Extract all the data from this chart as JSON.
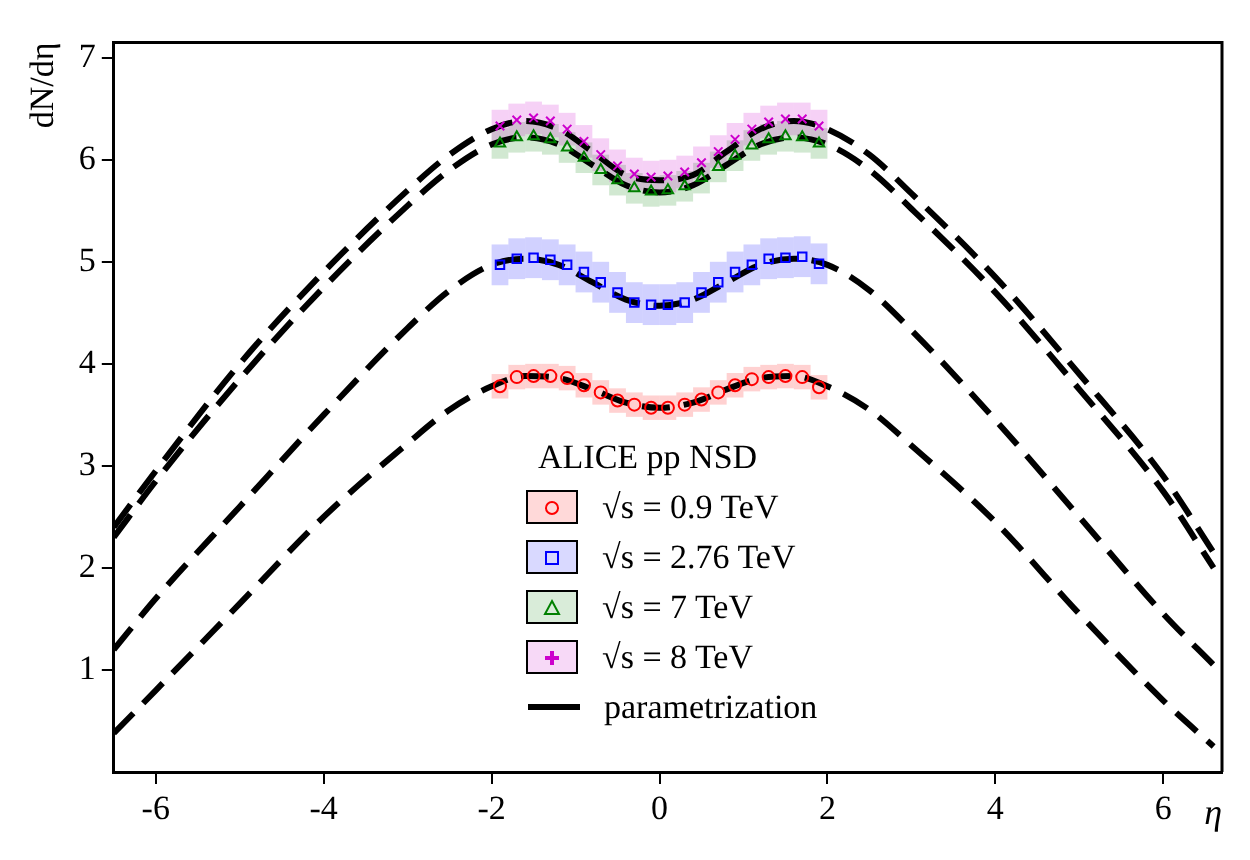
{
  "chart_data": {
    "type": "scatter",
    "ylabel": "dN/dη",
    "xlabel": "η",
    "legend_title": "ALICE pp NSD",
    "legend": "bottom",
    "grid": false,
    "xlim": [
      -6.5,
      6.7
    ],
    "xticks": [
      -6,
      -4,
      -2,
      0,
      2,
      4,
      6
    ],
    "ylim": [
      0,
      7.15
    ],
    "yticks": [
      1,
      2,
      3,
      4,
      5,
      6,
      7
    ],
    "x": [
      -1.9,
      -1.7,
      -1.5,
      -1.3,
      -1.1,
      -0.9,
      -0.7,
      -0.5,
      -0.3,
      -0.1,
      0.1,
      0.3,
      0.5,
      0.7,
      0.9,
      1.1,
      1.3,
      1.5,
      1.7,
      1.9
    ],
    "series": [
      {
        "name": "√s = 0.9 TeV",
        "marker": "circle",
        "color": "#ff0000",
        "values": [
          3.78,
          3.87,
          3.88,
          3.88,
          3.86,
          3.79,
          3.72,
          3.64,
          3.6,
          3.57,
          3.57,
          3.6,
          3.65,
          3.72,
          3.79,
          3.85,
          3.87,
          3.88,
          3.87,
          3.77
        ],
        "errors": [
          0.12,
          0.12,
          0.12,
          0.12,
          0.12,
          0.12,
          0.12,
          0.12,
          0.12,
          0.12,
          0.12,
          0.12,
          0.12,
          0.12,
          0.12,
          0.12,
          0.12,
          0.12,
          0.12,
          0.12
        ]
      },
      {
        "name": "√s = 2.76 TeV",
        "marker": "square",
        "color": "#0000ff",
        "values": [
          4.97,
          5.03,
          5.04,
          5.02,
          4.97,
          4.9,
          4.8,
          4.7,
          4.6,
          4.58,
          4.58,
          4.6,
          4.7,
          4.8,
          4.9,
          4.97,
          5.03,
          5.04,
          5.05,
          4.98
        ],
        "errors": [
          0.2,
          0.2,
          0.2,
          0.2,
          0.2,
          0.2,
          0.2,
          0.2,
          0.2,
          0.2,
          0.2,
          0.2,
          0.2,
          0.2,
          0.2,
          0.2,
          0.2,
          0.2,
          0.2,
          0.2
        ]
      },
      {
        "name": "√s = 7 TeV",
        "marker": "triangle",
        "color": "#008000",
        "values": [
          6.16,
          6.22,
          6.23,
          6.2,
          6.12,
          6.02,
          5.9,
          5.8,
          5.72,
          5.69,
          5.7,
          5.74,
          5.82,
          5.93,
          6.04,
          6.14,
          6.2,
          6.23,
          6.22,
          6.16
        ],
        "errors": [
          0.15,
          0.15,
          0.15,
          0.15,
          0.15,
          0.15,
          0.15,
          0.15,
          0.15,
          0.15,
          0.15,
          0.15,
          0.15,
          0.15,
          0.15,
          0.15,
          0.15,
          0.15,
          0.15,
          0.15
        ]
      },
      {
        "name": "√s = 8 TeV",
        "marker": "cross",
        "color": "#cc00cc",
        "values": [
          6.33,
          6.39,
          6.41,
          6.38,
          6.3,
          6.18,
          6.05,
          5.94,
          5.86,
          5.83,
          5.84,
          5.88,
          5.97,
          6.08,
          6.2,
          6.3,
          6.37,
          6.4,
          6.4,
          6.33
        ],
        "errors": [
          0.16,
          0.16,
          0.16,
          0.16,
          0.16,
          0.16,
          0.16,
          0.16,
          0.16,
          0.16,
          0.16,
          0.16,
          0.16,
          0.16,
          0.16,
          0.16,
          0.16,
          0.16,
          0.16,
          0.16
        ]
      },
      {
        "name": "parametrization",
        "type": "line",
        "marker": "none",
        "line_style": "dashed",
        "color": "#000000",
        "x": [
          -6.5,
          -6,
          -5,
          -4,
          -3,
          -2.5,
          -2,
          -1.6,
          -1.2,
          -0.8,
          -0.4,
          0,
          0.4,
          0.8,
          1.2,
          1.6,
          2,
          2.5,
          3,
          4,
          5,
          6,
          6.6
        ],
        "values": [
          0.38,
          0.8,
          1.65,
          2.5,
          3.22,
          3.55,
          3.78,
          3.88,
          3.86,
          3.75,
          3.62,
          3.57,
          3.62,
          3.75,
          3.86,
          3.88,
          3.78,
          3.55,
          3.2,
          2.45,
          1.55,
          0.7,
          0.25
        ]
      },
      {
        "type": "line",
        "marker": "none",
        "line_style": "dashed",
        "color": "#000000",
        "x": [
          -6.5,
          -6,
          -5,
          -4,
          -3,
          -2.5,
          -2,
          -1.6,
          -1.2,
          -0.8,
          -0.4,
          0,
          0.4,
          0.8,
          1.2,
          1.6,
          2,
          2.5,
          3,
          4,
          5,
          6,
          6.6
        ],
        "values": [
          1.2,
          1.7,
          2.6,
          3.5,
          4.35,
          4.72,
          4.97,
          5.03,
          4.97,
          4.8,
          4.63,
          4.57,
          4.63,
          4.8,
          4.97,
          5.03,
          4.97,
          4.72,
          4.33,
          3.45,
          2.5,
          1.55,
          1.05
        ]
      },
      {
        "type": "line",
        "marker": "none",
        "line_style": "dashed",
        "color": "#000000",
        "x": [
          -6.5,
          -6,
          -5,
          -4,
          -3,
          -2.5,
          -2,
          -1.6,
          -1.2,
          -0.8,
          -0.4,
          0,
          0.4,
          0.8,
          1.2,
          1.6,
          2,
          2.5,
          3,
          4,
          5,
          6,
          6.6
        ],
        "values": [
          2.3,
          2.85,
          3.85,
          4.75,
          5.55,
          5.9,
          6.15,
          6.22,
          6.15,
          5.95,
          5.75,
          5.68,
          5.75,
          5.95,
          6.15,
          6.22,
          6.15,
          5.9,
          5.52,
          4.7,
          3.75,
          2.75,
          2.0
        ]
      },
      {
        "type": "line",
        "marker": "none",
        "line_style": "dashed",
        "color": "#000000",
        "x": [
          -6.5,
          -6,
          -5,
          -4,
          -3,
          -2.5,
          -2,
          -1.6,
          -1.2,
          -0.8,
          -0.4,
          0,
          0.4,
          0.8,
          1.2,
          1.6,
          2,
          2.5,
          3,
          4,
          5,
          6,
          6.6
        ],
        "values": [
          2.4,
          2.95,
          4.0,
          4.9,
          5.7,
          6.05,
          6.3,
          6.38,
          6.3,
          6.08,
          5.85,
          5.8,
          5.85,
          6.08,
          6.3,
          6.38,
          6.3,
          6.05,
          5.67,
          4.85,
          3.9,
          2.9,
          2.15
        ]
      }
    ]
  }
}
